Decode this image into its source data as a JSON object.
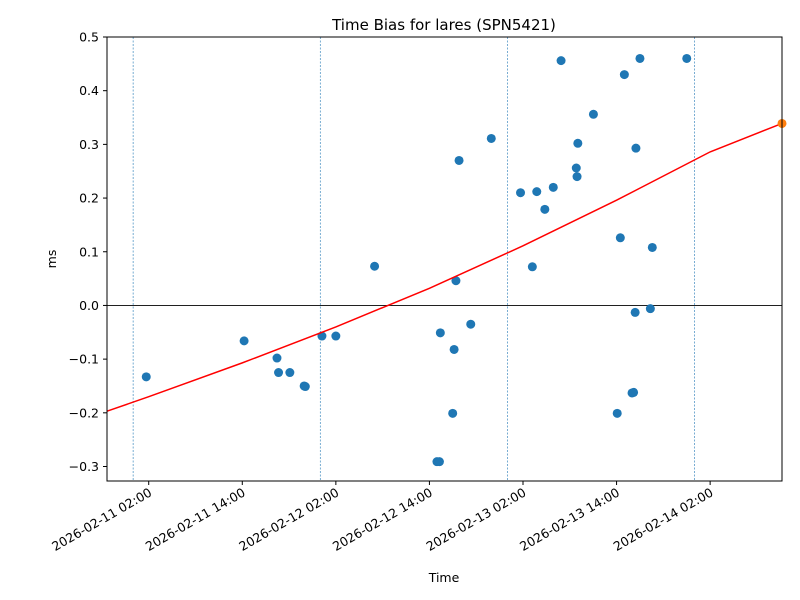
{
  "chart_data": {
    "type": "scatter",
    "title": "Time Bias for lares (SPN5421)",
    "xlabel": "Time",
    "ylabel": "ms",
    "xlim": [
      "2026-02-10T20:39",
      "2026-02-14T11:13"
    ],
    "ylim": [
      -0.327,
      0.5
    ],
    "grid": false,
    "x_ticks": [
      "2026-02-11 02:00",
      "2026-02-11 14:00",
      "2026-02-12 02:00",
      "2026-02-12 14:00",
      "2026-02-13 02:00",
      "2026-02-13 14:00",
      "2026-02-14 02:00"
    ],
    "y_ticks": [
      "-0.3",
      "-0.2",
      "-0.1",
      "0.0",
      "0.1",
      "0.2",
      "0.3",
      "0.4",
      "0.5"
    ],
    "y_tick_values": [
      -0.3,
      -0.2,
      -0.1,
      0.0,
      0.1,
      0.2,
      0.3,
      0.4,
      0.5
    ],
    "vertical_lines": [
      "2026-02-11T00:00",
      "2026-02-12T00:00",
      "2026-02-13T00:00",
      "2026-02-14T00:00"
    ],
    "horizontal_line": 0.0,
    "series": [
      {
        "type": "scatter",
        "color": "#1f77b4",
        "points": [
          {
            "x": "2026-02-11T01:41",
            "y": -0.133
          },
          {
            "x": "2026-02-11T14:14",
            "y": -0.066
          },
          {
            "x": "2026-02-11T18:27",
            "y": -0.098
          },
          {
            "x": "2026-02-11T18:39",
            "y": -0.125
          },
          {
            "x": "2026-02-11T20:06",
            "y": -0.125
          },
          {
            "x": "2026-02-11T21:56",
            "y": -0.15
          },
          {
            "x": "2026-02-11T22:05",
            "y": -0.151
          },
          {
            "x": "2026-02-12T00:13",
            "y": -0.057
          },
          {
            "x": "2026-02-12T02:00",
            "y": -0.057
          },
          {
            "x": "2026-02-12T06:58",
            "y": 0.073
          },
          {
            "x": "2026-02-12T14:58",
            "y": -0.291
          },
          {
            "x": "2026-02-12T15:17",
            "y": -0.291
          },
          {
            "x": "2026-02-12T15:24",
            "y": -0.051
          },
          {
            "x": "2026-02-12T16:59",
            "y": -0.201
          },
          {
            "x": "2026-02-12T17:10",
            "y": -0.082
          },
          {
            "x": "2026-02-12T17:24",
            "y": 0.046
          },
          {
            "x": "2026-02-12T17:48",
            "y": 0.27
          },
          {
            "x": "2026-02-12T19:18",
            "y": -0.035
          },
          {
            "x": "2026-02-12T21:56",
            "y": 0.311
          },
          {
            "x": "2026-02-13T01:41",
            "y": 0.21
          },
          {
            "x": "2026-02-13T03:12",
            "y": 0.072
          },
          {
            "x": "2026-02-13T03:46",
            "y": 0.212
          },
          {
            "x": "2026-02-13T04:48",
            "y": 0.179
          },
          {
            "x": "2026-02-13T05:53",
            "y": 0.22
          },
          {
            "x": "2026-02-13T06:53",
            "y": 0.456
          },
          {
            "x": "2026-02-13T08:50",
            "y": 0.256
          },
          {
            "x": "2026-02-13T08:56",
            "y": 0.24
          },
          {
            "x": "2026-02-13T09:02",
            "y": 0.302
          },
          {
            "x": "2026-02-13T11:02",
            "y": 0.356
          },
          {
            "x": "2026-02-13T14:05",
            "y": -0.201
          },
          {
            "x": "2026-02-13T14:29",
            "y": 0.126
          },
          {
            "x": "2026-02-13T15:00",
            "y": 0.43
          },
          {
            "x": "2026-02-13T15:59",
            "y": -0.163
          },
          {
            "x": "2026-02-13T16:11",
            "y": -0.162
          },
          {
            "x": "2026-02-13T16:23",
            "y": -0.013
          },
          {
            "x": "2026-02-13T16:29",
            "y": 0.293
          },
          {
            "x": "2026-02-13T17:00",
            "y": 0.46
          },
          {
            "x": "2026-02-13T18:20",
            "y": -0.006
          },
          {
            "x": "2026-02-13T18:35",
            "y": 0.108
          },
          {
            "x": "2026-02-13T23:00",
            "y": 0.46
          }
        ]
      },
      {
        "type": "line",
        "color": "#ff0000",
        "points": [
          {
            "x": "2026-02-10T20:39",
            "y": -0.197
          },
          {
            "x": "2026-02-11T02:00",
            "y": -0.17
          },
          {
            "x": "2026-02-11T14:00",
            "y": -0.107
          },
          {
            "x": "2026-02-12T02:00",
            "y": -0.04
          },
          {
            "x": "2026-02-12T14:00",
            "y": 0.032
          },
          {
            "x": "2026-02-13T02:00",
            "y": 0.111
          },
          {
            "x": "2026-02-13T14:00",
            "y": 0.196
          },
          {
            "x": "2026-02-14T02:00",
            "y": 0.286
          },
          {
            "x": "2026-02-14T11:13",
            "y": 0.339
          }
        ]
      },
      {
        "type": "scatter",
        "color": "#ff7f0e",
        "points": [
          {
            "x": "2026-02-14T11:13",
            "y": 0.339
          }
        ]
      }
    ]
  }
}
